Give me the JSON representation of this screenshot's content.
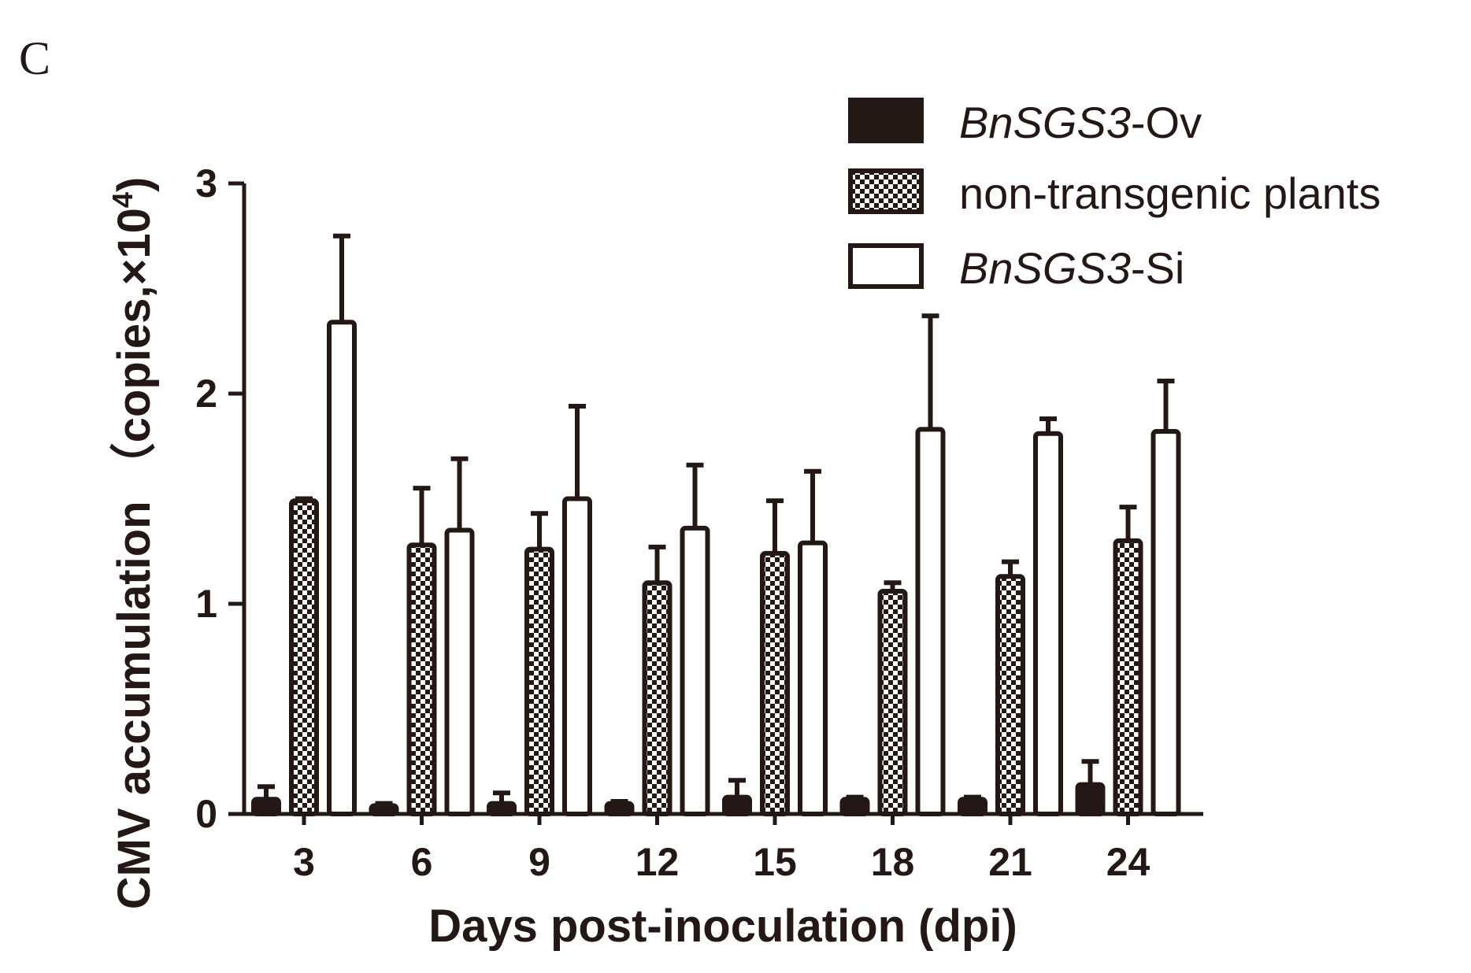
{
  "panel_label": "C",
  "chart_data": {
    "type": "bar",
    "xlabel": "Days post-inoculation (dpi)",
    "ylabel": "CMV accumulation （copies,×10",
    "ylabel_sup": "4",
    "ylabel_close": ")",
    "ylim": [
      0,
      3
    ],
    "yticks": [
      "0",
      "1",
      "2",
      "3"
    ],
    "categories": [
      "3",
      "6",
      "9",
      "12",
      "15",
      "18",
      "21",
      "24"
    ],
    "grid": false,
    "legend_position": "top-right",
    "series": [
      {
        "name_italic": "BnSGS3",
        "name_rest": "-Ov",
        "fill": "solid",
        "values": [
          0.07,
          0.04,
          0.05,
          0.05,
          0.08,
          0.07,
          0.07,
          0.14
        ],
        "errors": [
          0.06,
          0.01,
          0.05,
          0.01,
          0.08,
          0.01,
          0.01,
          0.11
        ]
      },
      {
        "name_italic": "",
        "name_rest": "non-transgenic plants",
        "fill": "checker",
        "values": [
          1.49,
          1.28,
          1.26,
          1.1,
          1.24,
          1.06,
          1.13,
          1.3
        ],
        "errors": [
          0.01,
          0.27,
          0.17,
          0.17,
          0.25,
          0.04,
          0.07,
          0.16
        ]
      },
      {
        "name_italic": "BnSGS3",
        "name_rest": "-Si",
        "fill": "open",
        "values": [
          2.34,
          1.35,
          1.5,
          1.36,
          1.29,
          1.83,
          1.81,
          1.82
        ],
        "errors": [
          0.41,
          0.34,
          0.44,
          0.3,
          0.34,
          0.54,
          0.07,
          0.24
        ]
      }
    ],
    "colors": {
      "ink": "#231815",
      "background": "#ffffff"
    }
  }
}
